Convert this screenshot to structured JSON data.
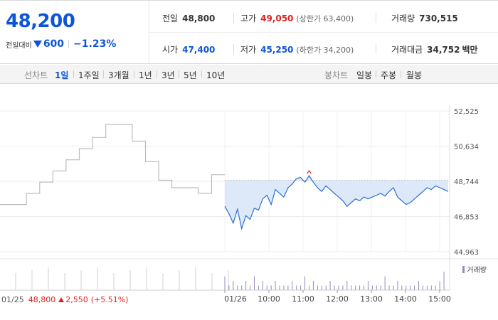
{
  "header": {
    "price": "48,200",
    "change_label": "전일대비",
    "change_amount": "600",
    "change_percent": "−1.23%",
    "stats": {
      "prev_close": {
        "label": "전일",
        "value": "48,800"
      },
      "high": {
        "label": "고가",
        "value": "49,050",
        "sub": "(상한가 63,400)"
      },
      "volume": {
        "label": "거래량",
        "value": "730,515"
      },
      "open": {
        "label": "시가",
        "value": "47,400"
      },
      "low": {
        "label": "저가",
        "value": "45,250",
        "sub": "(하한가 34,200)"
      },
      "amount": {
        "label": "거래대금",
        "value": "34,752",
        "unit": "백만"
      }
    }
  },
  "period_bar": {
    "line_chart_label": "선차트",
    "line_periods": [
      "1일",
      "1주일",
      "3개월",
      "1년",
      "3년",
      "5년",
      "10년"
    ],
    "active_period": "1일",
    "candle_chart_label": "봉차트",
    "candle_periods": [
      "일봉",
      "주봉",
      "월봉"
    ]
  },
  "colors": {
    "up": "#e02020",
    "down": "#0d55d8",
    "line": "#2a6fd6",
    "area": "#dde9f8",
    "volume": "#9a87c0"
  },
  "chart_data": {
    "type": "line",
    "y_ticks": [
      "52,525",
      "50,634",
      "48,744",
      "46,853",
      "44,963"
    ],
    "ylim": [
      44963,
      52525
    ],
    "x_ticks": [
      "01/26",
      "10:00",
      "11:00",
      "12:00",
      "13:00",
      "14:00",
      "15:00"
    ],
    "prev_close_reference": 48800,
    "prev_day": {
      "date": "01/25",
      "close": "48,800",
      "change": "2,550",
      "change_percent": "(+5.51%)",
      "steps": [
        47500,
        47500,
        48100,
        48700,
        49300,
        49900,
        50500,
        51100,
        51800,
        51800,
        50900,
        49800,
        48800,
        48400,
        48400,
        48100,
        49100
      ]
    },
    "today": {
      "open": 47400,
      "values": [
        47400,
        47000,
        46500,
        47250,
        46200,
        46900,
        46700,
        47300,
        47200,
        47800,
        48000,
        47500,
        48300,
        48100,
        47900,
        48400,
        48600,
        48900,
        48950,
        48700,
        49050,
        48700,
        48400,
        48200,
        48500,
        48300,
        48100,
        47900,
        47700,
        47400,
        47600,
        47800,
        47700,
        47900,
        47800,
        47900,
        48000,
        48100,
        47950,
        48200,
        48400,
        47900,
        47700,
        47500,
        47600,
        47800,
        48000,
        48200,
        48400,
        48300,
        48500,
        48400,
        48300,
        48200
      ]
    },
    "volume_legend": "거래량",
    "volume": [
      3,
      1,
      2,
      1,
      1,
      2,
      1,
      3,
      1,
      2,
      1,
      1,
      2,
      1,
      1,
      1,
      2,
      1,
      1,
      3,
      1,
      2,
      1,
      1,
      1,
      2,
      1,
      1,
      1,
      2,
      1,
      1,
      1,
      1,
      2,
      1,
      1,
      1,
      3,
      1,
      1,
      2,
      1,
      1,
      1,
      1,
      2,
      1,
      1,
      1,
      1,
      2,
      4
    ]
  }
}
